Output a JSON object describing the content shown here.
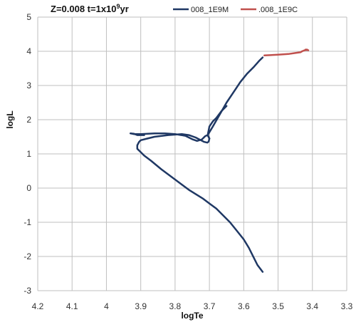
{
  "chart_data": {
    "type": "line",
    "title": "Z=0.008 t=1x10",
    "title_superscript": "9",
    "title_suffix": "yr",
    "xlabel": "logTe",
    "ylabel": "logL",
    "xlim": [
      4.2,
      3.3
    ],
    "x_reversed": true,
    "ylim": [
      -3,
      5
    ],
    "x_ticks": [
      "4.2",
      "4.1",
      "4",
      "3.9",
      "3.8",
      "3.7",
      "3.6",
      "3.5",
      "3.4",
      "3.3"
    ],
    "y_ticks": [
      "5",
      "4",
      "3",
      "2",
      "1",
      "0",
      "-1",
      "-2",
      "-3"
    ],
    "grid": true,
    "legend_position": "top",
    "series": [
      {
        "name": "008_1E9M",
        "color": "#1f3864",
        "x": [
          3.545,
          3.56,
          3.57,
          3.585,
          3.6,
          3.62,
          3.64,
          3.66,
          3.68,
          3.7,
          3.72,
          3.76,
          3.8,
          3.84,
          3.87,
          3.89,
          3.9,
          3.91,
          3.91,
          3.905,
          3.9,
          3.88,
          3.86,
          3.82,
          3.78,
          3.76,
          3.74,
          3.725,
          3.715,
          3.706,
          3.702,
          3.7,
          3.705,
          3.712,
          3.722,
          3.736,
          3.75,
          3.77,
          3.8,
          3.83,
          3.86,
          3.88,
          3.9,
          3.92,
          3.93,
          3.92,
          3.91,
          3.89
        ],
        "y": [
          -2.45,
          -2.25,
          -2.05,
          -1.75,
          -1.5,
          -1.25,
          -1.0,
          -0.8,
          -0.6,
          -0.45,
          -0.3,
          -0.05,
          0.25,
          0.55,
          0.8,
          0.95,
          1.05,
          1.15,
          1.25,
          1.35,
          1.4,
          1.45,
          1.5,
          1.55,
          1.58,
          1.55,
          1.48,
          1.4,
          1.35,
          1.33,
          1.36,
          1.45,
          1.55,
          1.52,
          1.42,
          1.38,
          1.43,
          1.53,
          1.58,
          1.6,
          1.6,
          1.59,
          1.58,
          1.58,
          1.6,
          1.59,
          1.55,
          1.55
        ]
      },
      {
        "name": "008_1E9M",
        "color": "#1f3864",
        "x": [
          3.7,
          3.705,
          3.7,
          3.69,
          3.68,
          3.665,
          3.65
        ],
        "y": [
          1.45,
          1.55,
          1.8,
          1.95,
          2.05,
          2.25,
          2.4
        ]
      },
      {
        "name": "008_1E9M",
        "color": "#1f3864",
        "x": [
          3.705,
          3.69,
          3.67,
          3.65,
          3.63,
          3.61,
          3.59,
          3.57,
          3.555,
          3.545
        ],
        "y": [
          1.55,
          1.8,
          2.15,
          2.5,
          2.8,
          3.1,
          3.35,
          3.55,
          3.72,
          3.82
        ]
      },
      {
        "name": ".008_1E9C",
        "color": "#c0504d",
        "x": [
          3.54,
          3.5,
          3.47,
          3.45,
          3.435,
          3.43,
          3.425,
          3.415,
          3.42,
          3.412
        ],
        "y": [
          3.88,
          3.9,
          3.92,
          3.95,
          3.97,
          4.0,
          4.02,
          4.05,
          4.05,
          4.03
        ]
      }
    ]
  }
}
